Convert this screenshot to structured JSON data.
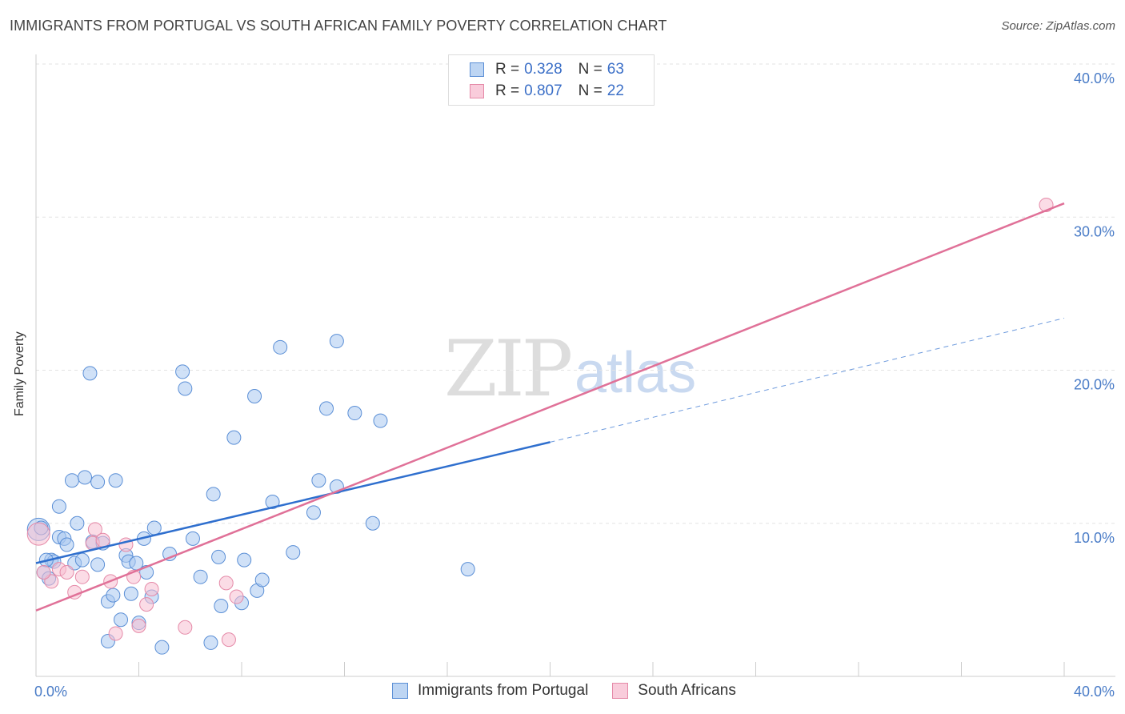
{
  "title": "IMMIGRANTS FROM PORTUGAL VS SOUTH AFRICAN FAMILY POVERTY CORRELATION CHART",
  "source": "Source: ZipAtlas.com",
  "watermark": {
    "zip": "ZIP",
    "atlas": "atlas"
  },
  "legend": {
    "r_label": "R =",
    "n_label": "N =",
    "series1": {
      "r": "0.328",
      "n": "63"
    },
    "series2": {
      "r": "0.807",
      "n": "22"
    }
  },
  "chart_data": {
    "type": "scatter",
    "title": "IMMIGRANTS FROM PORTUGAL VS SOUTH AFRICAN FAMILY POVERTY CORRELATION CHART",
    "xlabel": "",
    "ylabel": "Family Poverty",
    "xlim": [
      0,
      40
    ],
    "ylim": [
      0,
      40
    ],
    "x_tick_labels": [
      "0.0%",
      "40.0%"
    ],
    "y_tick_labels": [
      "10.0%",
      "20.0%",
      "30.0%",
      "40.0%"
    ],
    "y_ticks": [
      10,
      20,
      30,
      40
    ],
    "grid": true,
    "legend_position": "top-center",
    "series": [
      {
        "name": "Immigrants from Portugal",
        "color": "#a9c8f0",
        "stroke": "#5b8fd6",
        "line_color": "#2f6fce",
        "r": 0.328,
        "n": 63,
        "trend": {
          "x0": 0,
          "y0": 7.4,
          "x1": 20,
          "y1": 15.3,
          "dashed_to_x": 40,
          "dashed_y": 23.4
        },
        "points": [
          [
            0.1,
            9.6
          ],
          [
            0.3,
            6.8
          ],
          [
            0.5,
            6.4
          ],
          [
            0.6,
            7.6
          ],
          [
            0.7,
            7.5
          ],
          [
            0.9,
            11.1
          ],
          [
            0.9,
            9.1
          ],
          [
            1.1,
            9.0
          ],
          [
            1.2,
            8.6
          ],
          [
            1.4,
            12.8
          ],
          [
            1.5,
            7.4
          ],
          [
            1.6,
            10.0
          ],
          [
            1.8,
            7.6
          ],
          [
            1.9,
            13.0
          ],
          [
            2.1,
            19.8
          ],
          [
            2.2,
            8.8
          ],
          [
            2.4,
            12.7
          ],
          [
            2.4,
            7.3
          ],
          [
            2.6,
            8.7
          ],
          [
            2.8,
            4.9
          ],
          [
            2.8,
            2.3
          ],
          [
            3.0,
            5.3
          ],
          [
            3.1,
            12.8
          ],
          [
            3.3,
            3.7
          ],
          [
            3.5,
            7.9
          ],
          [
            3.6,
            7.5
          ],
          [
            3.7,
            5.4
          ],
          [
            3.9,
            7.4
          ],
          [
            4.0,
            3.5
          ],
          [
            4.2,
            9.0
          ],
          [
            4.3,
            6.8
          ],
          [
            4.5,
            5.2
          ],
          [
            4.6,
            9.7
          ],
          [
            4.9,
            1.9
          ],
          [
            5.2,
            8.0
          ],
          [
            5.7,
            19.9
          ],
          [
            5.8,
            18.8
          ],
          [
            6.1,
            9.0
          ],
          [
            6.4,
            6.5
          ],
          [
            6.8,
            2.2
          ],
          [
            6.9,
            11.9
          ],
          [
            7.1,
            7.8
          ],
          [
            7.2,
            4.6
          ],
          [
            7.7,
            15.6
          ],
          [
            8.0,
            4.8
          ],
          [
            8.1,
            7.6
          ],
          [
            8.5,
            18.3
          ],
          [
            8.6,
            5.6
          ],
          [
            8.8,
            6.3
          ],
          [
            9.2,
            11.4
          ],
          [
            9.5,
            21.5
          ],
          [
            10.0,
            8.1
          ],
          [
            10.8,
            10.7
          ],
          [
            11.0,
            12.8
          ],
          [
            11.3,
            17.5
          ],
          [
            11.7,
            12.4
          ],
          [
            11.7,
            21.9
          ],
          [
            12.4,
            17.2
          ],
          [
            13.1,
            10.0
          ],
          [
            13.4,
            16.7
          ],
          [
            16.8,
            7.0
          ],
          [
            0.2,
            9.7
          ],
          [
            0.4,
            7.6
          ]
        ]
      },
      {
        "name": "South Africans",
        "color": "#f7c0d2",
        "stroke": "#e58aa8",
        "line_color": "#e07198",
        "r": 0.807,
        "n": 22,
        "trend": {
          "x0": 0,
          "y0": 4.3,
          "x1": 40,
          "y1": 30.9
        },
        "points": [
          [
            0.1,
            9.3
          ],
          [
            0.6,
            6.2
          ],
          [
            0.9,
            7.0
          ],
          [
            1.2,
            6.8
          ],
          [
            1.5,
            5.5
          ],
          [
            1.8,
            6.5
          ],
          [
            2.2,
            8.7
          ],
          [
            2.3,
            9.6
          ],
          [
            2.6,
            8.9
          ],
          [
            2.9,
            6.2
          ],
          [
            3.1,
            2.8
          ],
          [
            3.5,
            8.6
          ],
          [
            3.8,
            6.5
          ],
          [
            4.0,
            3.3
          ],
          [
            4.3,
            4.7
          ],
          [
            4.5,
            5.7
          ],
          [
            5.8,
            3.2
          ],
          [
            7.4,
            6.1
          ],
          [
            7.5,
            2.4
          ],
          [
            7.8,
            5.2
          ],
          [
            39.3,
            30.8
          ],
          [
            0.3,
            6.8
          ]
        ]
      }
    ]
  },
  "bottom_legend": {
    "item1": "Immigrants from Portugal",
    "item2": "South Africans"
  }
}
